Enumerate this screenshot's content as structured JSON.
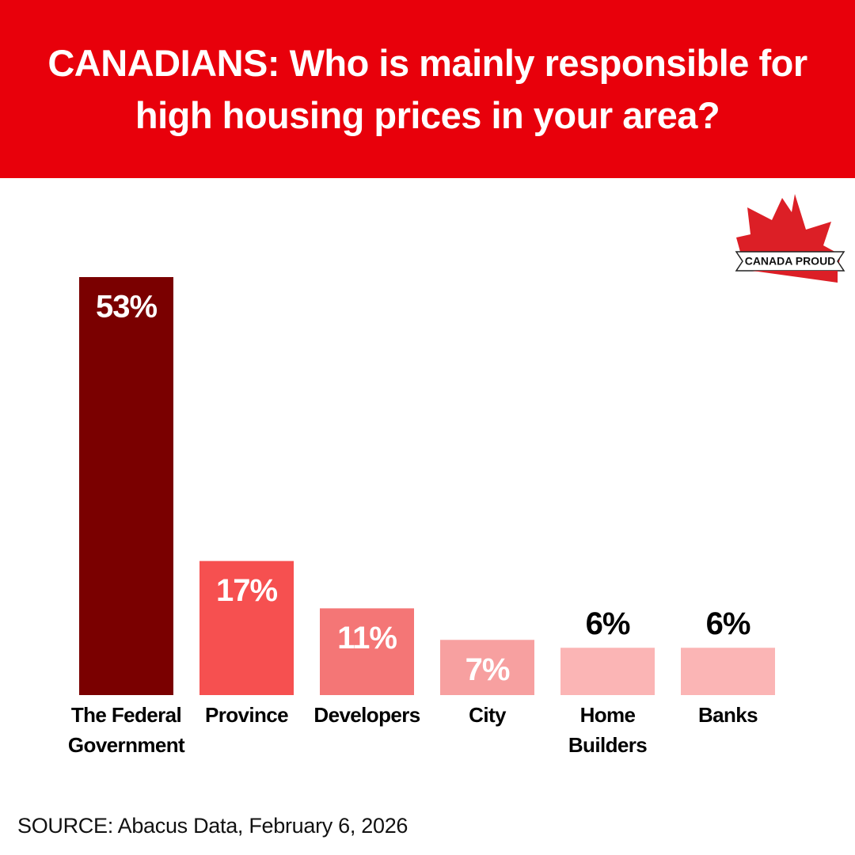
{
  "chart_data": {
    "type": "bar",
    "title": "CANADIANS: Who is mainly responsible for high housing prices in your area?",
    "categories": [
      "The Federal Government",
      "Province",
      "Developers",
      "City",
      "Home Builders",
      "Banks"
    ],
    "values": [
      53,
      17,
      11,
      7,
      6,
      6
    ],
    "value_labels": [
      "53%",
      "17%",
      "11%",
      "7%",
      "6%",
      "6%"
    ],
    "colors": [
      "#7a0000",
      "#f65050",
      "#f47676",
      "#f7a0a0",
      "#fbb5b5",
      "#fbb5b5"
    ],
    "source": "SOURCE: Abacus Data, February 6, 2026",
    "logo": "CANADA PROUD"
  }
}
